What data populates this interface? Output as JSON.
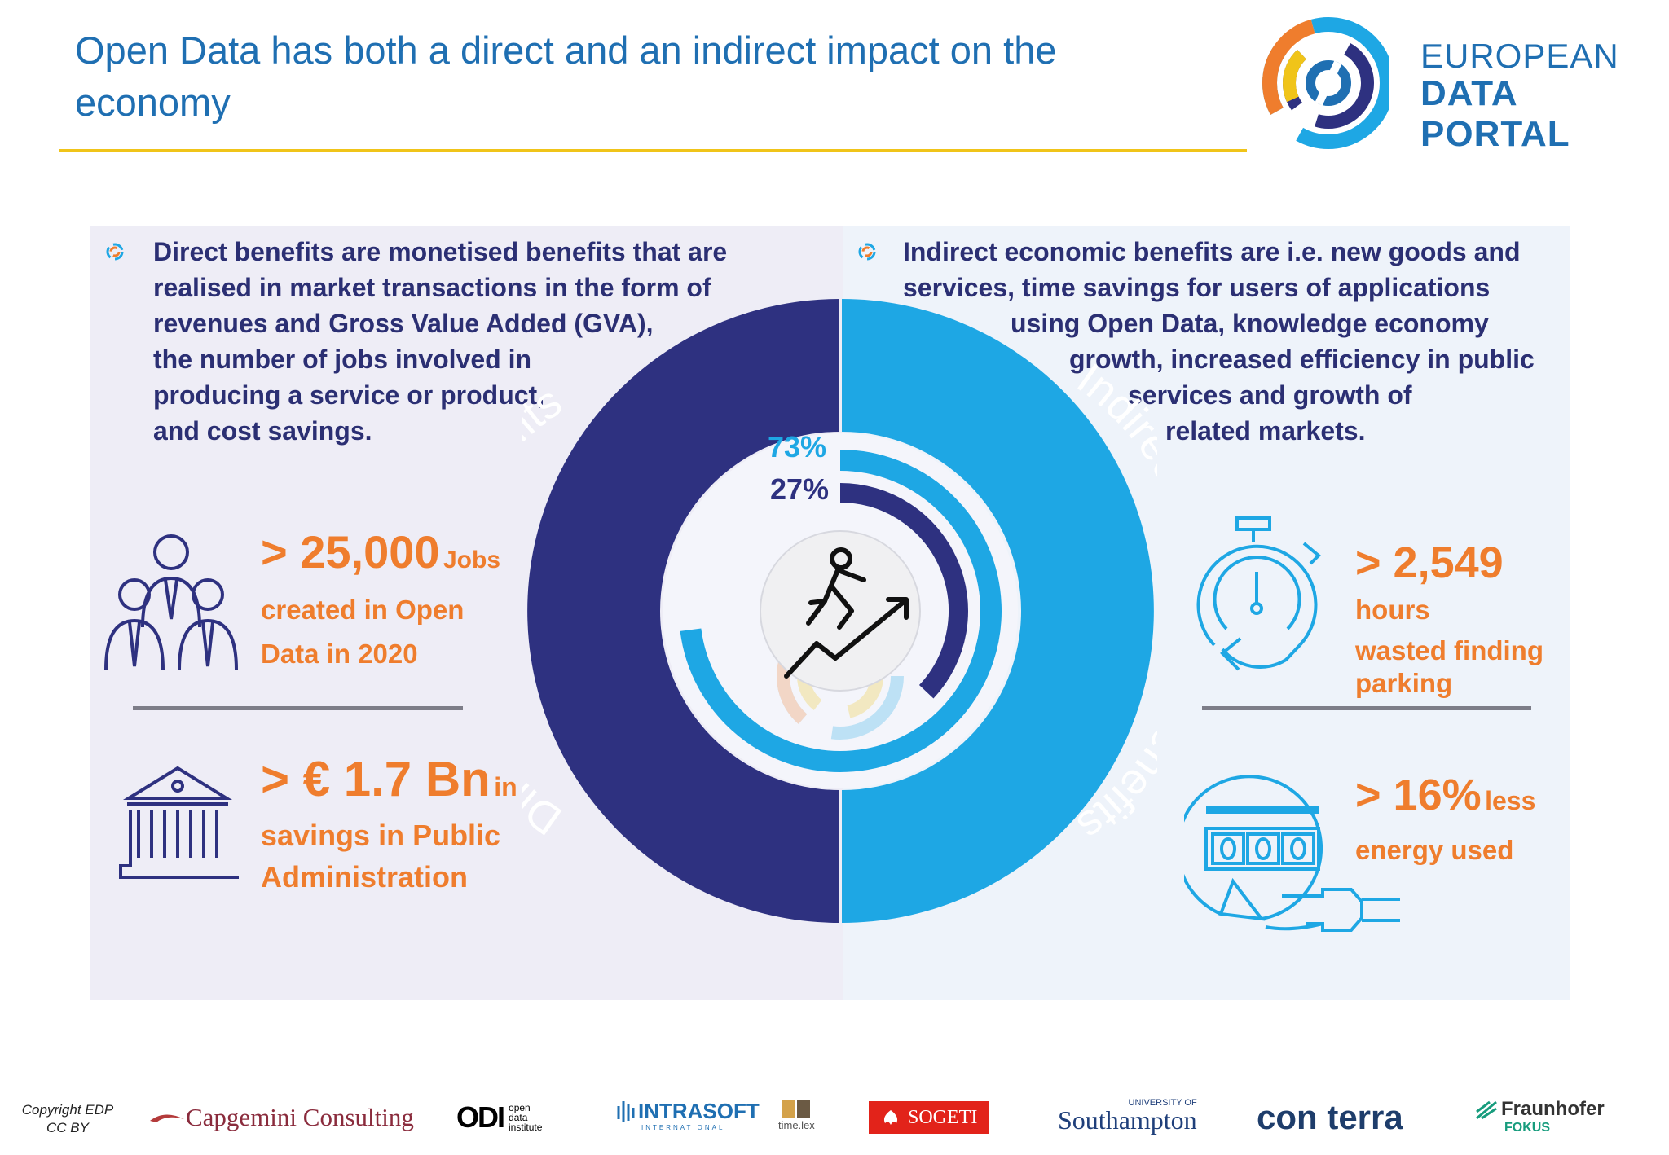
{
  "header": {
    "title_line1": "Open Data has both a direct and an indirect impact on the",
    "title_line2": "economy",
    "logo_line1": "EUROPEAN",
    "logo_line2": "DATA PORTAL"
  },
  "left": {
    "description_lines": [
      "Direct benefits are monetised benefits that are",
      "realised in market transactions in the form of",
      "revenues and Gross Value Added (GVA),",
      "the number of jobs involved in",
      "producing a service or product,",
      "and cost savings."
    ],
    "stat1": {
      "value": "> 25,000",
      "unit": "Jobs",
      "line2": "created in Open",
      "line3": "Data in 2020"
    },
    "stat2": {
      "value": "> € 1.7 Bn",
      "unit": "in",
      "line2": "savings in Public",
      "line3": "Administration"
    }
  },
  "right": {
    "description_lines": [
      "Indirect economic benefits are i.e. new goods and",
      "services, time savings for users of applications",
      "using Open Data, knowledge economy",
      "growth, increased efficiency in public",
      "services and growth of",
      "related markets."
    ],
    "stat1": {
      "value": "> 2,549",
      "line2": "hours",
      "line3": "wasted finding",
      "line4": "parking"
    },
    "stat2": {
      "value": "> 16%",
      "unit": "less",
      "line2": "energy used"
    }
  },
  "donut": {
    "outer_left_label": "Direct economic benefits",
    "outer_right_label": "Indirect economic benefits",
    "pct_indirect": "73%",
    "pct_direct": "27%",
    "indirect_share": 0.73,
    "direct_share": 0.27,
    "colors": {
      "direct": "#2e3180",
      "indirect": "#1ea7e4",
      "orange": "#ef7d2d"
    }
  },
  "footer": {
    "copyright_line1": "Copyright EDP",
    "copyright_line2": "CC BY",
    "partners": [
      "Capgemini Consulting",
      "open data institute",
      "INTRASOFT",
      "time.lex",
      "SOGETI",
      "Southampton",
      "con terra",
      "Fraunhofer FOKUS"
    ],
    "odi_mark": "ODI",
    "intrasoft_sub": "INTERNATIONAL",
    "univ_of": "UNIVERSITY OF",
    "fokus_word": "FOKUS"
  }
}
